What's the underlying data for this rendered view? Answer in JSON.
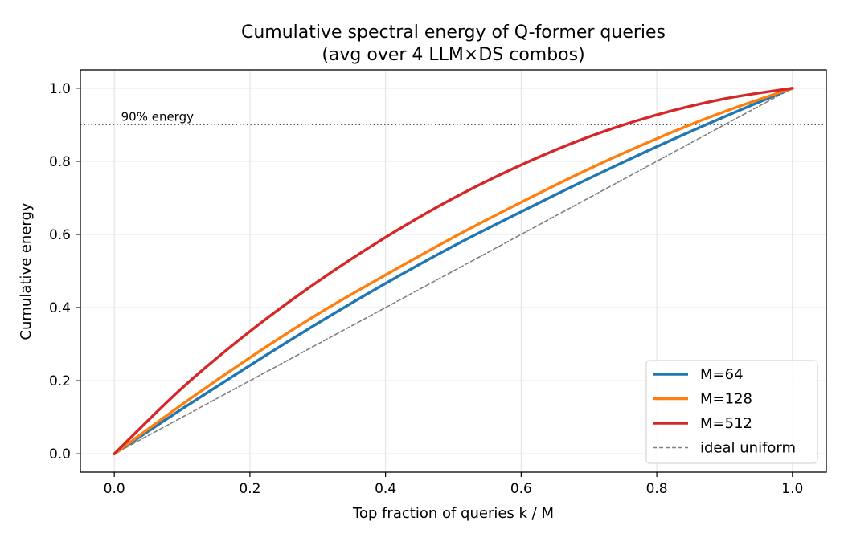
{
  "chart_data": {
    "type": "line",
    "title": "Cumulative spectral energy of Q-former queries",
    "subtitle": "(avg over 4 LLM×DS combos)",
    "xlabel": "Top fraction of queries  k / M",
    "ylabel": "Cumulative energy",
    "xlim": [
      -0.05,
      1.05
    ],
    "ylim": [
      -0.05,
      1.05
    ],
    "xticks": [
      0.0,
      0.2,
      0.4,
      0.6,
      0.8,
      1.0
    ],
    "xtick_labels": [
      "0.0",
      "0.2",
      "0.4",
      "0.6",
      "0.8",
      "1.0"
    ],
    "yticks": [
      0.0,
      0.2,
      0.4,
      0.6,
      0.8,
      1.0
    ],
    "ytick_labels": [
      "0.0",
      "0.2",
      "0.4",
      "0.6",
      "0.8",
      "1.0"
    ],
    "grid": true,
    "legend_position": "lower-right",
    "x": [
      0.0,
      0.1,
      0.2,
      0.3,
      0.4,
      0.5,
      0.6,
      0.7,
      0.8,
      0.9,
      1.0
    ],
    "series": [
      {
        "name": "M=64",
        "color": "#1f77b4",
        "style": "solid",
        "values": [
          0.0,
          0.123,
          0.242,
          0.357,
          0.466,
          0.568,
          0.662,
          0.753,
          0.84,
          0.922,
          1.0
        ]
      },
      {
        "name": "M=128",
        "color": "#ff7f0e",
        "style": "solid",
        "values": [
          0.0,
          0.135,
          0.263,
          0.382,
          0.489,
          0.592,
          0.688,
          0.779,
          0.862,
          0.936,
          1.0
        ]
      },
      {
        "name": "M=512",
        "color": "#d62728",
        "style": "solid",
        "values": [
          0.0,
          0.18,
          0.335,
          0.471,
          0.592,
          0.699,
          0.79,
          0.867,
          0.927,
          0.971,
          1.0
        ]
      },
      {
        "name": "ideal uniform",
        "color": "#808080",
        "style": "dashed",
        "values": [
          0.0,
          0.1,
          0.2,
          0.3,
          0.4,
          0.5,
          0.6,
          0.7,
          0.8,
          0.9,
          1.0
        ]
      }
    ],
    "annotations": [
      {
        "text": "90% energy",
        "y": 0.9,
        "line_style": "dotted",
        "line_color": "#555555"
      }
    ]
  }
}
